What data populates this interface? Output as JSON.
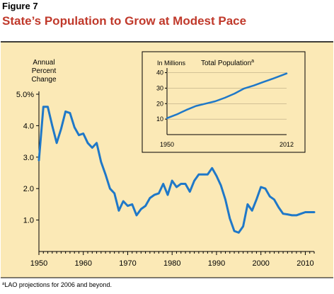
{
  "figure": {
    "label": "Figure 7",
    "title": "State’s Population to Grow at Modest Pace",
    "footnote": "LAO projections for 2006 and beyond.",
    "footnote_marker": "a"
  },
  "colors": {
    "panel_bg": "#fbe9b6",
    "line": "#1f78c8",
    "title_red": "#c0392b",
    "frame": "#000000"
  },
  "chart_data": [
    {
      "type": "line",
      "title": "",
      "ylabel": [
        "Annual",
        "Percent",
        "Change"
      ],
      "xlabel": "",
      "xlim": [
        1950,
        2012
      ],
      "ylim": [
        0,
        5.0
      ],
      "x_ticks": [
        1950,
        1960,
        1970,
        1980,
        1990,
        2000,
        2010
      ],
      "y_ticks": [
        {
          "value": 5.0,
          "label": "5.0%"
        },
        {
          "value": 4.0,
          "label": "4.0"
        },
        {
          "value": 3.0,
          "label": "3.0"
        },
        {
          "value": 2.0,
          "label": "2.0"
        },
        {
          "value": 1.0,
          "label": "1.0"
        }
      ],
      "grid": false,
      "series": [
        {
          "name": "",
          "x": [
            1950,
            1951,
            1952,
            1953,
            1954,
            1955,
            1956,
            1957,
            1958,
            1959,
            1960,
            1961,
            1962,
            1963,
            1964,
            1965,
            1966,
            1967,
            1968,
            1969,
            1970,
            1971,
            1972,
            1973,
            1974,
            1975,
            1976,
            1977,
            1978,
            1979,
            1980,
            1981,
            1982,
            1983,
            1984,
            1985,
            1986,
            1987,
            1988,
            1989,
            1990,
            1991,
            1992,
            1993,
            1994,
            1995,
            1996,
            1997,
            1998,
            1999,
            2000,
            2001,
            2002,
            2003,
            2004,
            2005,
            2006,
            2007,
            2008,
            2009,
            2010,
            2011,
            2012
          ],
          "y": [
            2.9,
            4.6,
            4.6,
            4.0,
            3.45,
            3.9,
            4.45,
            4.4,
            3.95,
            3.7,
            3.75,
            3.45,
            3.3,
            3.45,
            2.85,
            2.45,
            2.0,
            1.85,
            1.3,
            1.6,
            1.45,
            1.5,
            1.15,
            1.35,
            1.45,
            1.7,
            1.8,
            1.85,
            2.15,
            1.8,
            2.25,
            2.05,
            2.15,
            2.15,
            1.9,
            2.25,
            2.45,
            2.45,
            2.45,
            2.65,
            2.4,
            2.1,
            1.65,
            1.05,
            0.65,
            0.6,
            0.8,
            1.5,
            1.3,
            1.65,
            2.05,
            2.0,
            1.75,
            1.65,
            1.4,
            1.2,
            1.18,
            1.15,
            1.15,
            1.2,
            1.25,
            1.25,
            1.25
          ]
        }
      ]
    },
    {
      "type": "line",
      "title": "Total Population",
      "title_superscript": "a",
      "ylabel": "In Millions",
      "xlabel": "",
      "xlim": [
        1950,
        2012
      ],
      "ylim": [
        0,
        43
      ],
      "x_tick_labels": [
        "1950",
        "2012"
      ],
      "y_ticks": [
        10,
        20,
        30,
        40
      ],
      "grid": true,
      "series": [
        {
          "name": "",
          "x": [
            1950,
            1955,
            1960,
            1965,
            1970,
            1975,
            1980,
            1985,
            1990,
            1995,
            2000,
            2005,
            2010,
            2012
          ],
          "y": [
            10.6,
            13.0,
            15.9,
            18.5,
            20.0,
            21.5,
            23.8,
            26.5,
            29.8,
            31.7,
            34.0,
            36.2,
            38.5,
            39.5
          ]
        }
      ]
    }
  ]
}
